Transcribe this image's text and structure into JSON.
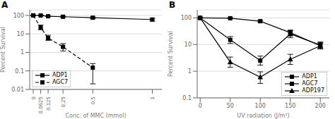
{
  "chart_data": [
    {
      "type": "line",
      "title": "A",
      "xlabel": "Conc. of MMC (mmol)",
      "ylabel": "Percent Survival",
      "log": "y",
      "grid": "y",
      "legend": "lower left",
      "xlim": [
        -0.03,
        1.08
      ],
      "xticks": [
        0,
        0.0625,
        0.125,
        0.25,
        0.5,
        1
      ],
      "ylim": [
        0.01,
        200
      ],
      "yticks": [
        0.01,
        0.1,
        1,
        10,
        100
      ],
      "series": [
        {
          "name": "ADP1",
          "color": "black",
          "marker": "square",
          "line_style": "solid",
          "x": [
            0,
            0.0625,
            0.125,
            0.25,
            0.5,
            1
          ],
          "values": [
            100,
            100,
            90,
            85,
            75,
            60
          ],
          "error_low": [
            0,
            2,
            4,
            5,
            8,
            10
          ],
          "error_high": [
            0,
            2,
            4,
            5,
            8,
            10
          ]
        },
        {
          "name": "AGC7",
          "color": "black",
          "marker": "square",
          "line_style": "dashed",
          "x": [
            0,
            0.0625,
            0.125,
            0.25,
            0.5
          ],
          "values": [
            100,
            22,
            6,
            2.0,
            0.15
          ],
          "error_low": [
            0,
            5,
            1.5,
            0.8,
            0.13
          ],
          "error_high": [
            0,
            8,
            2.5,
            1.0,
            0.1
          ]
        }
      ]
    },
    {
      "type": "line",
      "title": "B",
      "xlabel": "UV radiation (J/m²)",
      "ylabel": "Percent Survival",
      "log": "y",
      "grid": "y",
      "legend": "lower right",
      "xlim": [
        -5,
        215
      ],
      "xticks": [
        0,
        50,
        100,
        150,
        200
      ],
      "ylim": [
        0.1,
        200
      ],
      "yticks": [
        0.1,
        1,
        10,
        100
      ],
      "series": [
        {
          "name": "ADP1",
          "color": "black",
          "marker": "square",
          "line_style": "solid",
          "x": [
            0,
            50,
            100,
            150,
            200
          ],
          "values": [
            100,
            97,
            75,
            28,
            9
          ],
          "error_low": [
            0,
            4,
            5,
            7,
            2
          ],
          "error_high": [
            0,
            4,
            5,
            7,
            2
          ]
        },
        {
          "name": "AGC7",
          "color": "black",
          "marker": "square",
          "line_style": "solid",
          "x": [
            0,
            50,
            100,
            150,
            200
          ],
          "values": [
            100,
            15,
            2.5,
            25,
            9.5
          ],
          "error_low": [
            0,
            4,
            0.8,
            7,
            2.5
          ],
          "error_high": [
            0,
            5,
            1.2,
            8,
            3.0
          ]
        },
        {
          "name": "ADP197",
          "color": "black",
          "marker": "triangle",
          "line_style": "solid",
          "x": [
            0,
            50,
            100,
            150,
            200
          ],
          "values": [
            100,
            2.2,
            0.6,
            2.8,
            9.0
          ],
          "error_low": [
            0,
            0.8,
            0.25,
            1.0,
            2.0
          ],
          "error_high": [
            0,
            1.2,
            0.35,
            1.5,
            3.0
          ]
        }
      ]
    }
  ]
}
